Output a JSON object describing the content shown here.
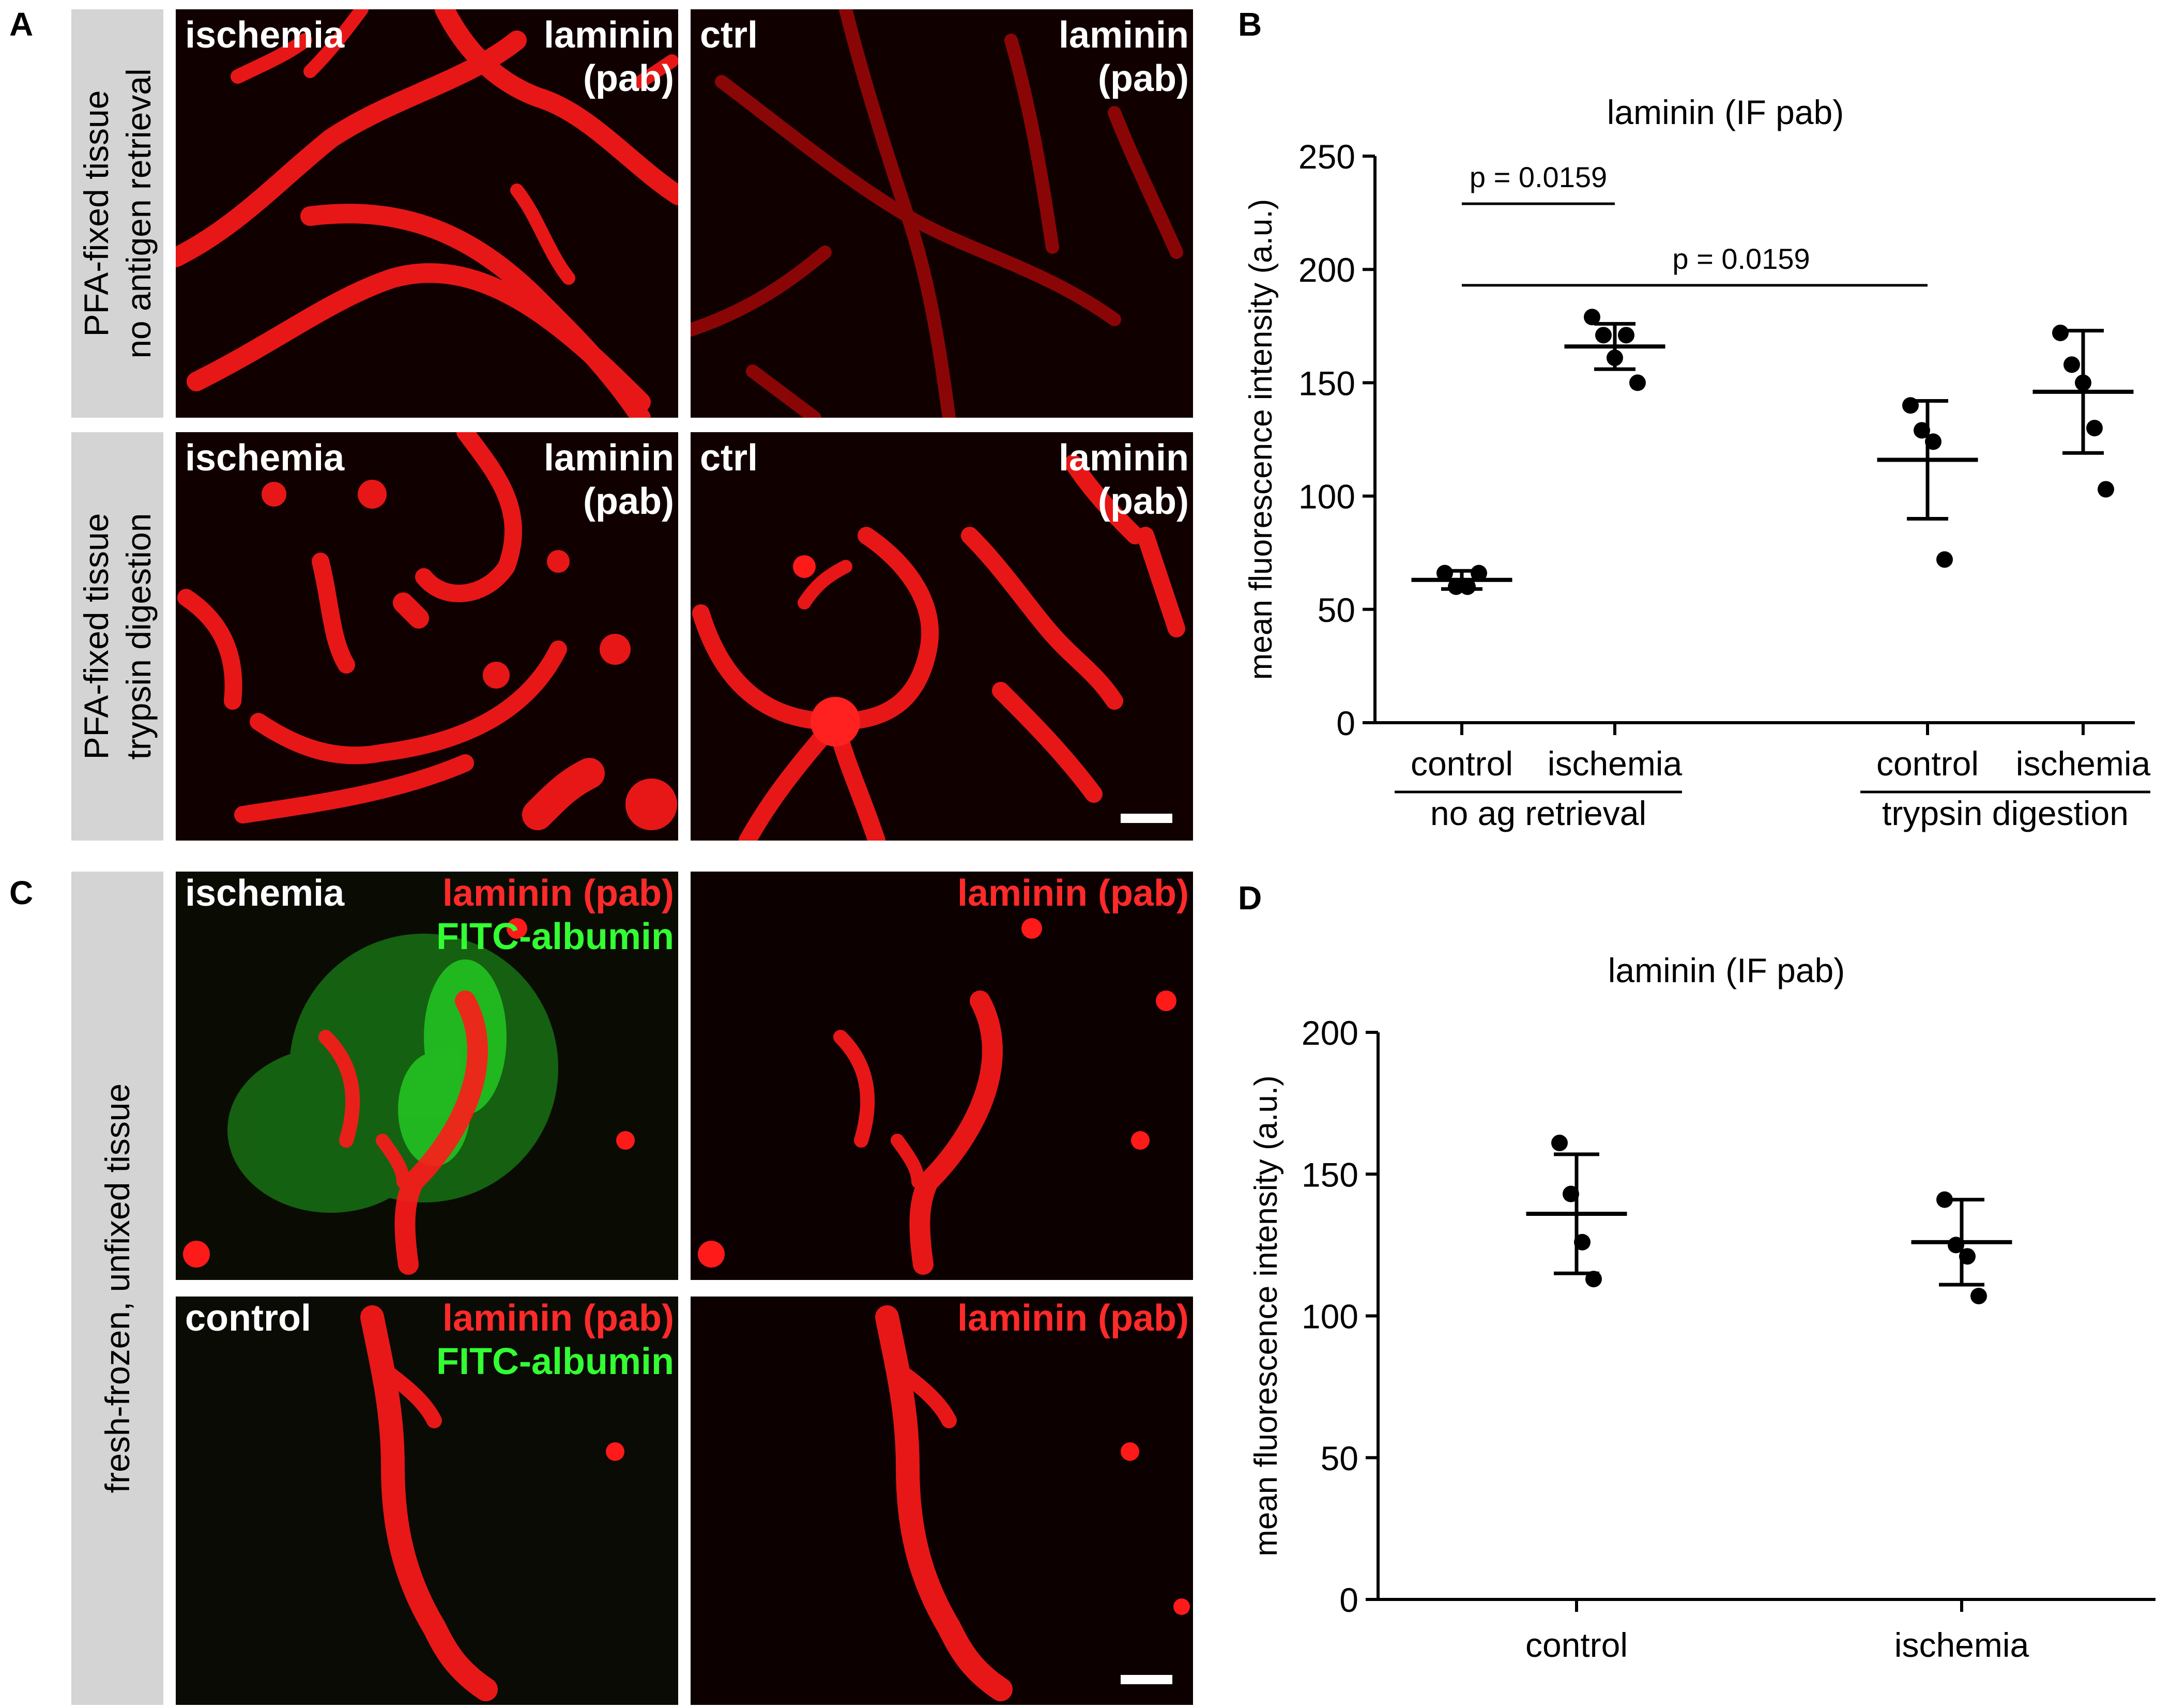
{
  "panel_letters": {
    "a": "A",
    "b": "B",
    "c": "C",
    "d": "D"
  },
  "panel_a": {
    "row1_side": [
      "PFA-fixed tissue",
      "no antigen retrieval"
    ],
    "row2_side": [
      "PFA-fixed tissue",
      "trypsin digestion"
    ],
    "left_label": "ischemia",
    "ctrl_label": "ctrl",
    "stain_line1": "laminin",
    "stain_line2": "(pab)"
  },
  "panel_c": {
    "side": "fresh-frozen, unfixed tissue",
    "ischemia_label": "ischemia",
    "control_label": "control",
    "laminin_label": "laminin (pab)",
    "fitc_label": "FITC-albumin"
  },
  "chart_data": [
    {
      "type": "scatter",
      "title": "laminin (IF pab)",
      "ylabel": "mean fluorescence intensity (a.u.)",
      "ylim": [
        0,
        250
      ],
      "yticks": [
        0,
        50,
        100,
        150,
        200,
        250
      ],
      "categories": [
        "control",
        "ischemia",
        "control",
        "ischemia"
      ],
      "category_x": [
        1,
        2,
        4,
        5
      ],
      "groups": [
        {
          "label": "no ag retrieval",
          "members": [
            0,
            1
          ]
        },
        {
          "label": "trypsin digestion",
          "members": [
            2,
            3
          ]
        }
      ],
      "series": [
        {
          "points": [
            66,
            60,
            60,
            66
          ],
          "mean": 63,
          "sd_low": 59,
          "sd_high": 67
        },
        {
          "points": [
            179,
            171,
            161,
            171,
            150
          ],
          "mean": 166,
          "sd_low": 156,
          "sd_high": 176
        },
        {
          "points": [
            140,
            129,
            124,
            72
          ],
          "mean": 116,
          "sd_low": 90,
          "sd_high": 142
        },
        {
          "points": [
            172,
            158,
            150,
            130,
            103
          ],
          "mean": 146,
          "sd_low": 119,
          "sd_high": 173
        }
      ],
      "annotations": [
        {
          "text": "p = 0.0159",
          "from": 0,
          "to": 1,
          "y": 229
        },
        {
          "text": "p = 0.0159",
          "from": 0,
          "to": 2,
          "y": 193
        }
      ]
    },
    {
      "type": "scatter",
      "title": "laminin (IF pab)",
      "ylabel": "mean fluorescence intensity (a.u.)",
      "ylim": [
        0,
        200
      ],
      "yticks": [
        0,
        50,
        100,
        150,
        200
      ],
      "categories": [
        "control",
        "ischemia"
      ],
      "category_x": [
        1,
        2
      ],
      "series": [
        {
          "points": [
            161,
            143,
            126,
            113
          ],
          "mean": 136,
          "sd_low": 115,
          "sd_high": 157
        },
        {
          "points": [
            141,
            125,
            121,
            107
          ],
          "mean": 126,
          "sd_low": 111,
          "sd_high": 141
        }
      ]
    }
  ],
  "colors": {
    "vessel": "#ff1a1a",
    "albumin": "#2cff2c",
    "background": "#110000",
    "panel_side": "#d4d4d4"
  }
}
